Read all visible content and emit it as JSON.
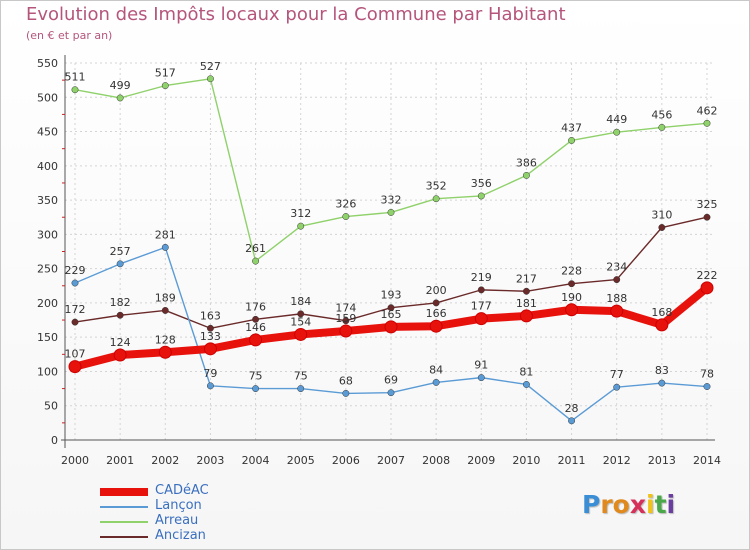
{
  "title": "Evolution des Impôts locaux pour la Commune par Habitant",
  "subtitle": "(en € et par an)",
  "logo": {
    "text": "Proxiti",
    "letters": [
      "P",
      "r",
      "o",
      "x",
      "i",
      "t",
      "i"
    ],
    "colors": [
      "#3a8ed6",
      "#e08a1e",
      "#e08a1e",
      "#d6305a",
      "#f2c21c",
      "#4aa84a",
      "#6a3da0"
    ]
  },
  "chart_data": {
    "type": "line",
    "title": "Evolution des Impôts locaux pour la Commune par Habitant",
    "subtitle": "(en € et par an)",
    "x": [
      "2000",
      "2001",
      "2002",
      "2003",
      "2004",
      "2005",
      "2006",
      "2007",
      "2008",
      "2009",
      "2010",
      "2011",
      "2012",
      "2013",
      "2014"
    ],
    "ylim": [
      0,
      550
    ],
    "yticks": [
      0,
      50,
      100,
      150,
      200,
      250,
      300,
      350,
      400,
      450,
      500,
      550
    ],
    "grid": true,
    "legend_position": "bottom-left",
    "series": [
      {
        "name": "CADéAC",
        "color": "#e8120d",
        "values": [
          107,
          124,
          128,
          133,
          146,
          154,
          159,
          165,
          166,
          177,
          181,
          190,
          188,
          168,
          222
        ]
      },
      {
        "name": "Lançon",
        "color": "#5b9bd5",
        "values": [
          229,
          257,
          281,
          79,
          75,
          75,
          68,
          69,
          84,
          91,
          81,
          28,
          77,
          83,
          78
        ]
      },
      {
        "name": "Arreau",
        "color": "#8fd16a",
        "values": [
          511,
          499,
          517,
          527,
          261,
          312,
          326,
          332,
          352,
          356,
          386,
          437,
          449,
          456,
          462
        ]
      },
      {
        "name": "Ancizan",
        "color": "#6b2a2a",
        "values": [
          172,
          182,
          189,
          163,
          176,
          184,
          174,
          193,
          200,
          219,
          217,
          228,
          234,
          310,
          325
        ]
      }
    ]
  }
}
